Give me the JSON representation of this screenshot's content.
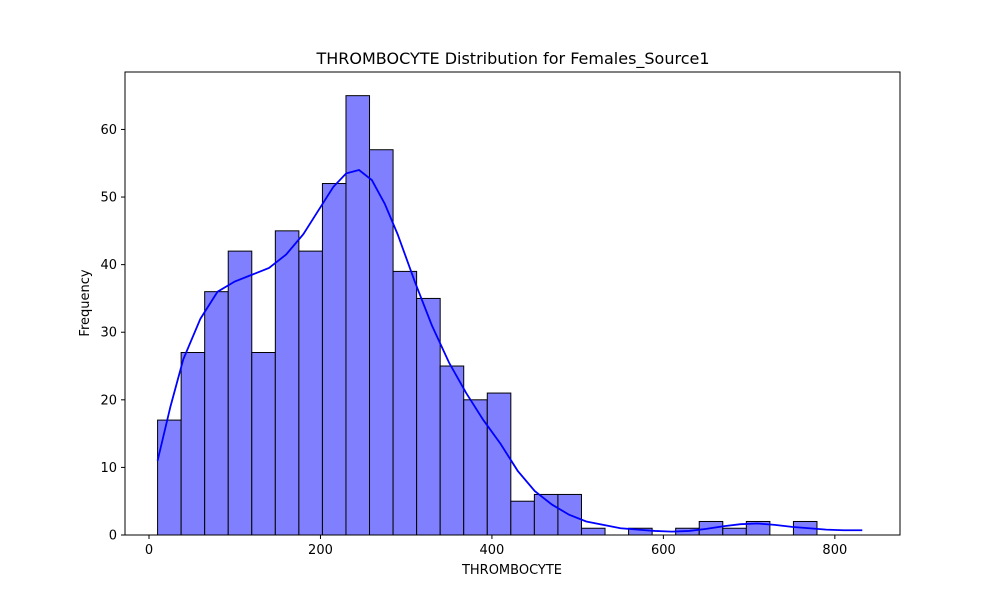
{
  "chart_data": {
    "type": "bar",
    "subtype": "histogram",
    "title": "THROMBOCYTE Distribution for Females_Source1",
    "xlabel": "THROMBOCYTE",
    "ylabel": "Frequency",
    "xlim": [
      -28,
      876
    ],
    "ylim": [
      0,
      68.5
    ],
    "x_ticks": [
      0,
      200,
      400,
      600,
      800
    ],
    "y_ticks": [
      0,
      10,
      20,
      30,
      40,
      50,
      60
    ],
    "grid": false,
    "legend": "none",
    "bin_start": 10,
    "bin_width": 27.47,
    "values": [
      17,
      27,
      36,
      42,
      27,
      45,
      42,
      52,
      65,
      57,
      39,
      35,
      25,
      20,
      21,
      5,
      6,
      6,
      1,
      0,
      1,
      0,
      1,
      2,
      1,
      2,
      0,
      2
    ],
    "kde": {
      "x": [
        10,
        25,
        40,
        60,
        80,
        100,
        120,
        140,
        160,
        180,
        200,
        215,
        230,
        245,
        260,
        275,
        290,
        310,
        330,
        350,
        370,
        390,
        410,
        430,
        450,
        470,
        490,
        510,
        530,
        550,
        570,
        590,
        610,
        630,
        650,
        670,
        690,
        710,
        730,
        750,
        770,
        790,
        810,
        832
      ],
      "y": [
        11,
        19,
        26,
        32,
        36,
        37.5,
        38.5,
        39.5,
        41.5,
        44.5,
        48.5,
        51.5,
        53.5,
        54,
        52.5,
        49,
        44.5,
        37.5,
        31,
        25.5,
        21,
        17,
        13.5,
        9.5,
        6.5,
        4.5,
        3,
        2,
        1.5,
        1,
        0.8,
        0.6,
        0.5,
        0.6,
        0.9,
        1.3,
        1.6,
        1.7,
        1.5,
        1.2,
        1.0,
        0.8,
        0.7,
        0.7
      ]
    },
    "colors": {
      "bar_fill": "#8080ff",
      "bar_edge": "#000000",
      "kde_line": "#0000ff"
    }
  }
}
